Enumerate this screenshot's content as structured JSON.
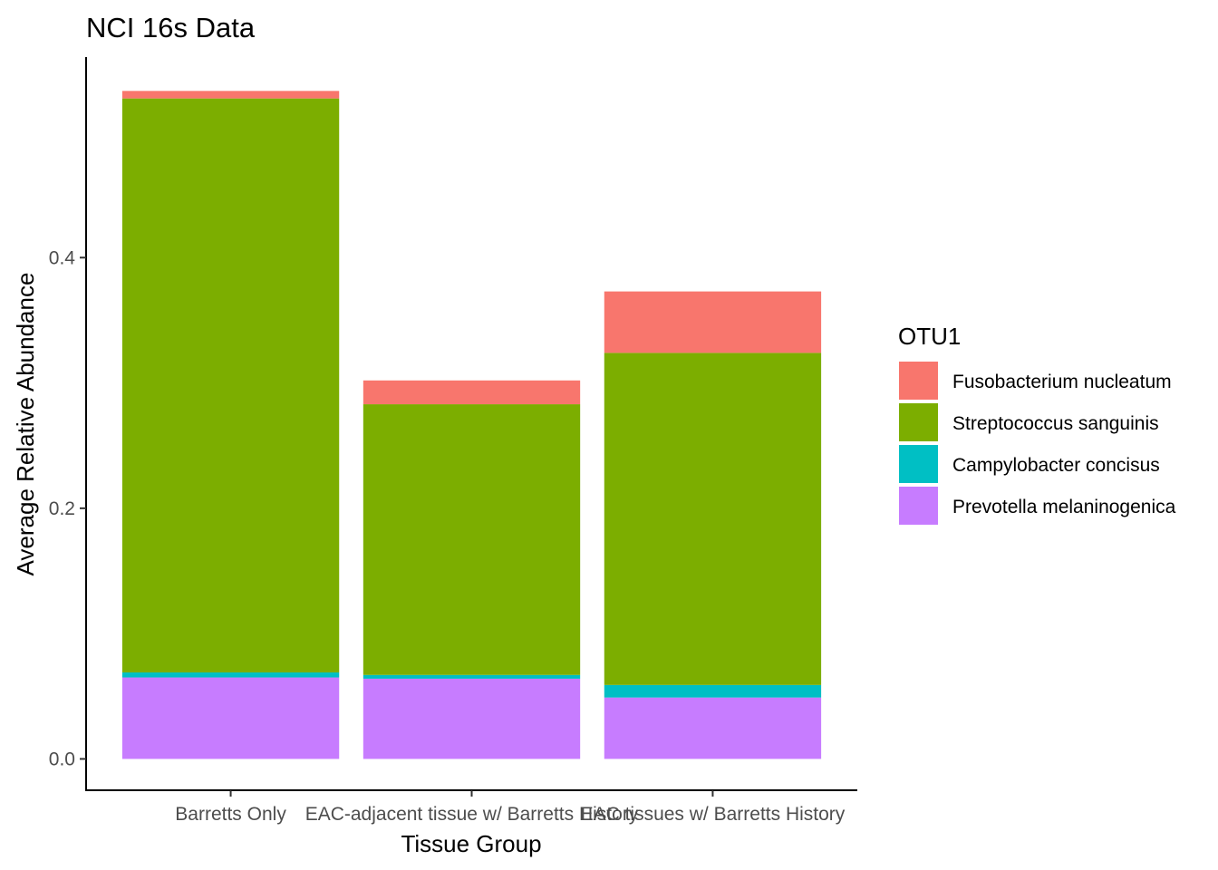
{
  "chart_data": {
    "type": "bar",
    "stacked": true,
    "title": "NCI 16s Data",
    "xlabel": "Tissue Group",
    "ylabel": "Average Relative Abundance",
    "ylim": [
      -0.025,
      0.56
    ],
    "yticks": [
      0.0,
      0.2,
      0.4
    ],
    "ytick_labels": [
      "0.0",
      "0.2",
      "0.4"
    ],
    "categories": [
      "Barretts Only",
      "EAC-adjacent tissue w/ Barretts History",
      "EAC tissues w/ Barretts History"
    ],
    "legend": {
      "title": "OTU1",
      "position": "right"
    },
    "series": [
      {
        "name": "Prevotella melaninogenica",
        "color": "#C77CFF",
        "values": [
          0.065,
          0.064,
          0.049
        ]
      },
      {
        "name": "Campylobacter concisus",
        "color": "#00BFC4",
        "values": [
          0.004,
          0.003,
          0.01
        ]
      },
      {
        "name": "Streptococcus sanguinis",
        "color": "#7CAE00",
        "values": [
          0.458,
          0.216,
          0.265
        ]
      },
      {
        "name": "Fusobacterium nucleatum",
        "color": "#F8766D",
        "values": [
          0.006,
          0.019,
          0.049
        ]
      }
    ],
    "legend_order": [
      "Fusobacterium nucleatum",
      "Streptococcus sanguinis",
      "Campylobacter concisus",
      "Prevotella melaninogenica"
    ],
    "grid": false
  }
}
